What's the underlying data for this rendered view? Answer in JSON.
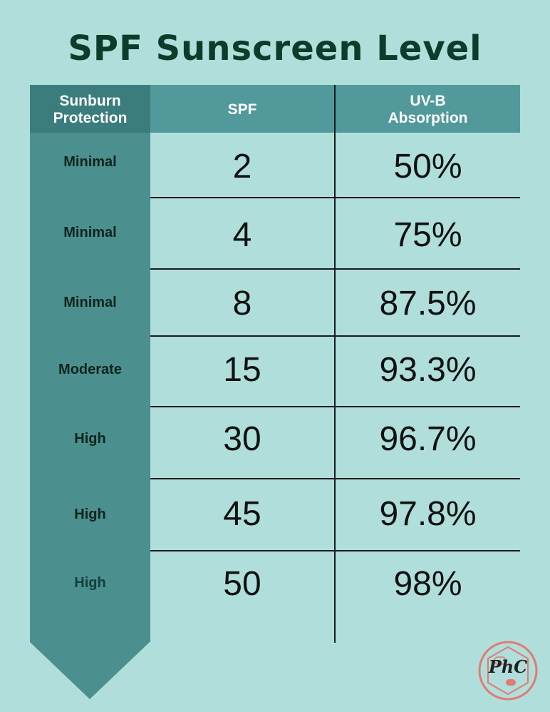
{
  "title": "SPF Sunscreen Level",
  "headers": {
    "protection_line1": "Sunburn",
    "protection_line2": "Protection",
    "spf": "SPF",
    "uvb_line1": "UV-B",
    "uvb_line2": "Absorption"
  },
  "rows": [
    {
      "protection": "Minimal",
      "spf": "2",
      "uvb": "50%"
    },
    {
      "protection": "Minimal",
      "spf": "4",
      "uvb": "75%"
    },
    {
      "protection": "Minimal",
      "spf": "8",
      "uvb": "87.5%"
    },
    {
      "protection": "Moderate",
      "spf": "15",
      "uvb": "93.3%"
    },
    {
      "protection": "High",
      "spf": "30",
      "uvb": "96.7%"
    },
    {
      "protection": "High",
      "spf": "45",
      "uvb": "97.8%"
    },
    {
      "protection": "High",
      "spf": "50",
      "uvb": "98%"
    }
  ],
  "logo": {
    "text": "PhC"
  },
  "colors": {
    "background": "#b0dfdb",
    "title": "#0b3d2b",
    "header": "#52999b",
    "left_column": "#4b8f8e",
    "logo_ring": "#e07b74"
  }
}
